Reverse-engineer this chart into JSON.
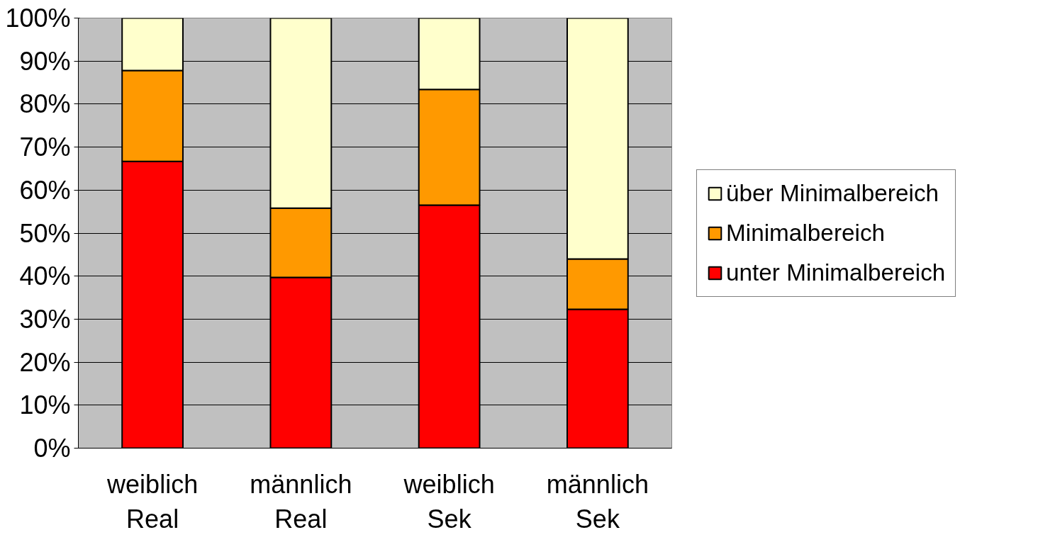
{
  "chart_data": {
    "type": "bar",
    "stacked": true,
    "categories": [
      "weiblich\nReal",
      "männlich\nReal",
      "weiblich\nSek",
      "männlich\nSek"
    ],
    "series": [
      {
        "name": "unter Minimalbereich",
        "color": "#ff0000",
        "values": [
          66.7,
          39.7,
          56.5,
          32.3
        ]
      },
      {
        "name": "Minimalbereich",
        "color": "#ff9900",
        "values": [
          21.1,
          16.1,
          26.9,
          11.7
        ]
      },
      {
        "name": "über Minimalbereich",
        "color": "#ffffcc",
        "values": [
          12.2,
          44.2,
          16.6,
          56.0
        ]
      }
    ],
    "ylim": [
      0,
      100
    ],
    "yticks": [
      {
        "value": 0,
        "label": "0%"
      },
      {
        "value": 10,
        "label": "10%"
      },
      {
        "value": 20,
        "label": "20%"
      },
      {
        "value": 30,
        "label": "30%"
      },
      {
        "value": 40,
        "label": "40%"
      },
      {
        "value": 50,
        "label": "50%"
      },
      {
        "value": 60,
        "label": "60%"
      },
      {
        "value": 70,
        "label": "70%"
      },
      {
        "value": 80,
        "label": "80%"
      },
      {
        "value": 90,
        "label": "90%"
      },
      {
        "value": 100,
        "label": "100%"
      }
    ],
    "grid": "y",
    "legend": "right"
  }
}
